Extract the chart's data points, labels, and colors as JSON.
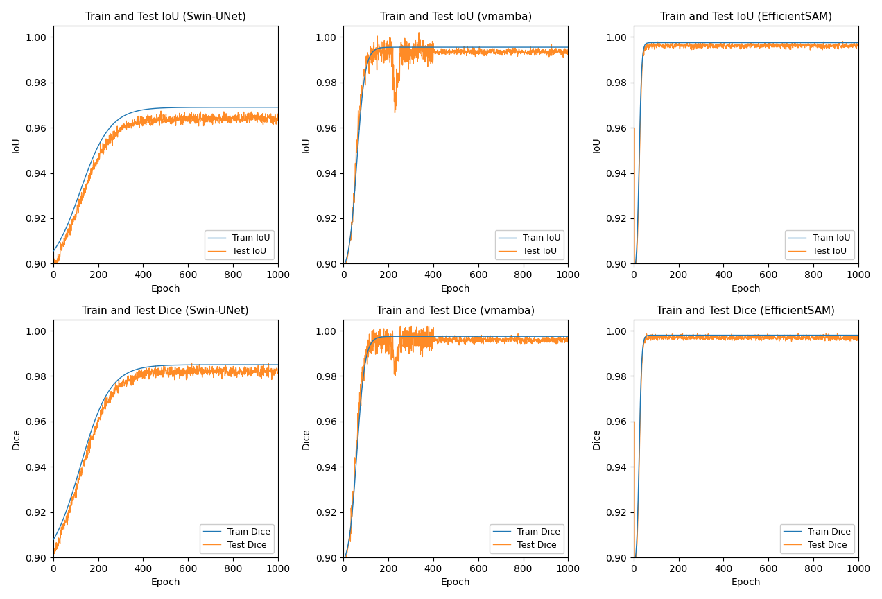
{
  "train_color": "#1f77b4",
  "test_color": "#ff7f0e",
  "ylim": [
    0.9,
    1.005
  ],
  "xlim": [
    0,
    1000
  ],
  "epochs": 1000,
  "xlabel": "Epoch",
  "ylabel_iou": "IoU",
  "ylabel_dice": "Dice",
  "linewidth": 1.0,
  "yticks": [
    0.9,
    0.92,
    0.94,
    0.96,
    0.98,
    1.0
  ],
  "xticks": [
    0,
    200,
    400,
    600,
    800,
    1000
  ],
  "titles": [
    [
      "Train and Test IoU (Swin-UNet)",
      "Train and Test IoU (vmamba)",
      "Train and Test IoU (EfficientSAM)"
    ],
    [
      "Train and Test Dice (Swin-UNet)",
      "Train and Test Dice (vmamba)",
      "Train and Test Dice (EfficientSAM)"
    ]
  ],
  "legends_iou": [
    "Train IoU",
    "Test IoU"
  ],
  "legends_dice": [
    "Train Dice",
    "Test Dice"
  ]
}
